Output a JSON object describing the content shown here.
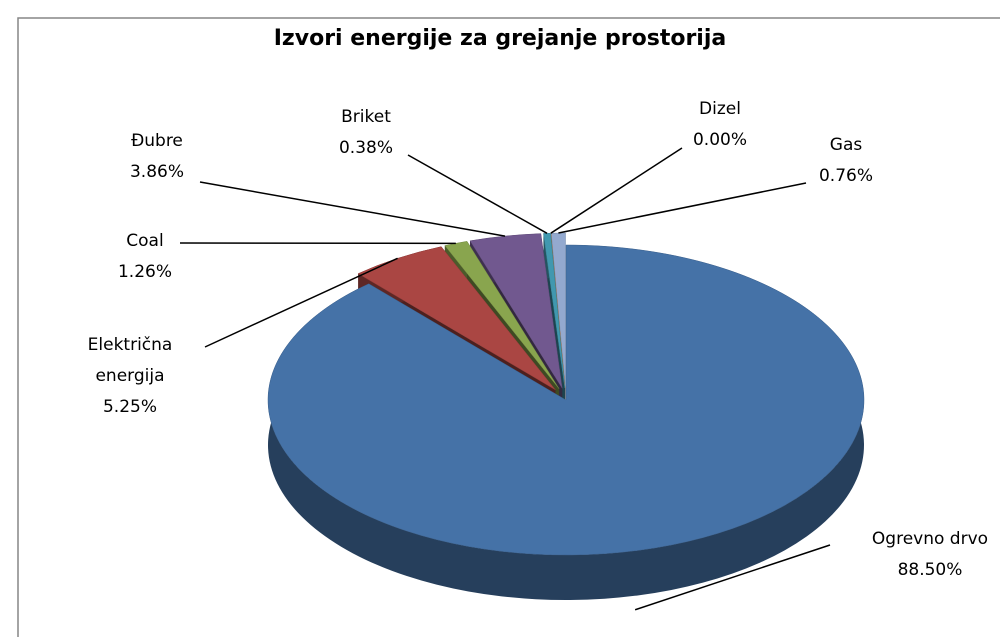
{
  "chart_data": {
    "type": "pie",
    "title": "Izvori energije za grejanje prostorija",
    "categories": [
      "Ogrevno drvo",
      "Električna energija",
      "Coal",
      "Đubre",
      "Briket",
      "Dizel",
      "Gas"
    ],
    "values": [
      88.5,
      5.25,
      1.26,
      3.86,
      0.38,
      0.0,
      0.76
    ],
    "value_labels": [
      "88.50%",
      "5.25%",
      "1.26%",
      "3.86%",
      "0.38%",
      "0.00%",
      "0.76%"
    ],
    "colors": [
      "#4572A7",
      "#AA4643",
      "#89A54E",
      "#71588F",
      "#4198AF",
      "#DB843D",
      "#93A9CF"
    ]
  }
}
